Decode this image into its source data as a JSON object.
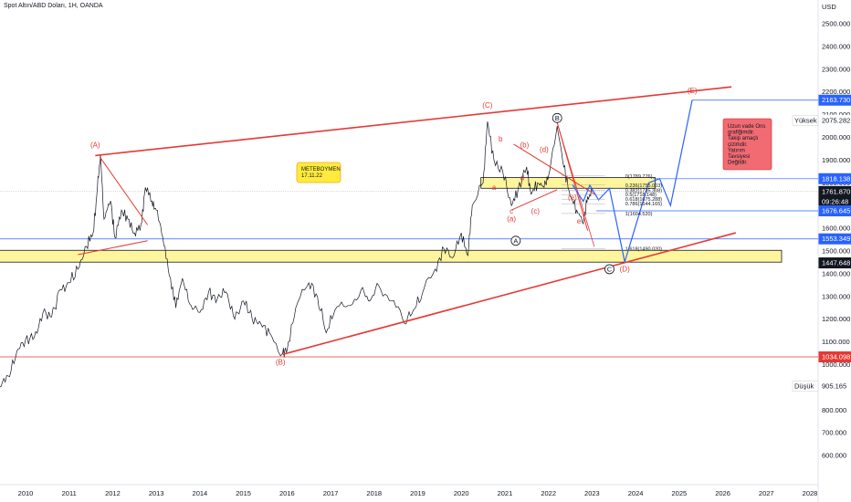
{
  "header": {
    "title": "Spot Altın/ABD Doları, 1H, OANDA"
  },
  "chart_data": {
    "type": "line",
    "currency": "USD",
    "y_ticks": [
      600,
      700,
      800,
      900,
      1000,
      1100,
      1200,
      1300,
      1400,
      1500,
      1600,
      1700,
      1800,
      1900,
      2000,
      2100,
      2200,
      2300,
      2400,
      2500
    ],
    "y_tick_labels": [
      "600.000",
      "700.000",
      "800.000",
      "900.000",
      "1000.000",
      "1100.000",
      "1200.000",
      "1300.000",
      "1400.000",
      "1500.000",
      "1600.000",
      "1700.000",
      "1800.000",
      "1900.000",
      "2000.000",
      "2100.000",
      "2200.000",
      "2300.000",
      "2400.000",
      "2500.000"
    ],
    "x_ticks": [
      "2010",
      "2011",
      "2012",
      "2013",
      "2014",
      "2015",
      "2016",
      "2017",
      "2018",
      "2019",
      "2020",
      "2021",
      "2022",
      "2023",
      "2024",
      "2025",
      "2026",
      "2027",
      "2028"
    ],
    "ylim": [
      560,
      2560
    ],
    "xlim": [
      2009.4,
      2028.6
    ],
    "price_tags": [
      {
        "label": "2163.730",
        "value": 2163.73,
        "color": "#2962ff"
      },
      {
        "label": "2075.282",
        "value": 2075.282,
        "color": "#ffffff",
        "text_color": "#131722",
        "prefix": "Yüksek"
      },
      {
        "label": "1818.138",
        "value": 1818.138,
        "color": "#2962ff"
      },
      {
        "label": "1761.870",
        "value": 1761.87,
        "color": "#131722",
        "sub": "09:26:48"
      },
      {
        "label": "1676.645",
        "value": 1676.645,
        "color": "#2962ff"
      },
      {
        "label": "1553.349",
        "value": 1553.349,
        "color": "#2962ff"
      },
      {
        "label": "1447.648",
        "value": 1447.648,
        "color": "#131722"
      },
      {
        "label": "1034.098",
        "value": 1034.098,
        "color": "#e53935"
      },
      {
        "label": "905.165",
        "value": 905.165,
        "color": "#ffffff",
        "text_color": "#131722",
        "prefix": "Düşük"
      }
    ],
    "price_series": [
      [
        2009.4,
        905
      ],
      [
        2009.6,
        950
      ],
      [
        2009.8,
        1060
      ],
      [
        2010.0,
        1110
      ],
      [
        2010.2,
        1120
      ],
      [
        2010.4,
        1230
      ],
      [
        2010.6,
        1210
      ],
      [
        2010.8,
        1330
      ],
      [
        2011.0,
        1360
      ],
      [
        2011.2,
        1420
      ],
      [
        2011.4,
        1520
      ],
      [
        2011.55,
        1580
      ],
      [
        2011.65,
        1780
      ],
      [
        2011.72,
        1920
      ],
      [
        2011.8,
        1640
      ],
      [
        2011.95,
        1720
      ],
      [
        2012.05,
        1560
      ],
      [
        2012.2,
        1680
      ],
      [
        2012.35,
        1640
      ],
      [
        2012.5,
        1580
      ],
      [
        2012.65,
        1620
      ],
      [
        2012.75,
        1780
      ],
      [
        2012.9,
        1720
      ],
      [
        2013.0,
        1680
      ],
      [
        2013.15,
        1560
      ],
      [
        2013.3,
        1390
      ],
      [
        2013.45,
        1250
      ],
      [
        2013.6,
        1380
      ],
      [
        2013.8,
        1260
      ],
      [
        2014.0,
        1230
      ],
      [
        2014.2,
        1320
      ],
      [
        2014.4,
        1290
      ],
      [
        2014.6,
        1320
      ],
      [
        2014.8,
        1200
      ],
      [
        2015.0,
        1280
      ],
      [
        2015.2,
        1200
      ],
      [
        2015.4,
        1180
      ],
      [
        2015.6,
        1140
      ],
      [
        2015.9,
        1050
      ],
      [
        2016.0,
        1060
      ],
      [
        2016.2,
        1250
      ],
      [
        2016.5,
        1360
      ],
      [
        2016.7,
        1300
      ],
      [
        2016.9,
        1140
      ],
      [
        2017.1,
        1240
      ],
      [
        2017.4,
        1260
      ],
      [
        2017.7,
        1330
      ],
      [
        2017.9,
        1280
      ],
      [
        2018.1,
        1350
      ],
      [
        2018.4,
        1280
      ],
      [
        2018.7,
        1180
      ],
      [
        2018.9,
        1240
      ],
      [
        2019.1,
        1310
      ],
      [
        2019.4,
        1420
      ],
      [
        2019.6,
        1510
      ],
      [
        2019.8,
        1470
      ],
      [
        2020.0,
        1580
      ],
      [
        2020.15,
        1480
      ],
      [
        2020.25,
        1700
      ],
      [
        2020.5,
        1800
      ],
      [
        2020.6,
        2070
      ],
      [
        2020.75,
        1900
      ],
      [
        2020.95,
        1850
      ],
      [
        2021.15,
        1700
      ],
      [
        2021.3,
        1770
      ],
      [
        2021.5,
        1870
      ],
      [
        2021.6,
        1750
      ],
      [
        2021.75,
        1800
      ],
      [
        2021.9,
        1780
      ],
      [
        2022.0,
        1830
      ],
      [
        2022.2,
        2050
      ],
      [
        2022.35,
        1870
      ],
      [
        2022.5,
        1740
      ],
      [
        2022.65,
        1680
      ],
      [
        2022.8,
        1620
      ],
      [
        2022.9,
        1740
      ],
      [
        2023.0,
        1762
      ]
    ]
  },
  "annotations": {
    "waves": [
      {
        "label": "(A)",
        "x": 2011.6,
        "y": 1955
      },
      {
        "label": "(B)",
        "x": 2015.85,
        "y": 1000
      },
      {
        "label": "(C)",
        "x": 2020.6,
        "y": 2130
      },
      {
        "label": "(D)",
        "x": 2023.75,
        "y": 1410
      },
      {
        "label": "(E)",
        "x": 2025.3,
        "y": 2195
      },
      {
        "label": "(a)",
        "x": 2021.15,
        "y": 1630
      },
      {
        "label": "(b)",
        "x": 2021.45,
        "y": 1955
      },
      {
        "label": "(c)",
        "x": 2021.7,
        "y": 1665
      },
      {
        "label": "(d)",
        "x": 2021.9,
        "y": 1935
      },
      {
        "label": "(e)",
        "x": 2022.55,
        "y": 1725
      },
      {
        "label": "b",
        "x": 2020.9,
        "y": 1982
      },
      {
        "label": "a",
        "x": 2020.75,
        "y": 1770
      },
      {
        "label": "c",
        "x": 2021.15,
        "y": 1665
      },
      {
        "label": "d",
        "x": 2021.4,
        "y": 1812
      },
      {
        "label": "e",
        "x": 2022.7,
        "y": 1620
      }
    ],
    "circled": [
      {
        "label": "B",
        "x": 2022.2,
        "y": 2085
      },
      {
        "label": "A",
        "x": 2021.25,
        "y": 1545
      },
      {
        "label": "C",
        "x": 2023.4,
        "y": 1420
      }
    ],
    "fib_levels": [
      {
        "label": "0(1789.776)",
        "x": 2022.4,
        "y": 1830
      },
      {
        "label": "0.236(1755.003)",
        "x": 2022.4,
        "y": 1790
      },
      {
        "label": "0.382(1735.308)",
        "x": 2022.4,
        "y": 1768
      },
      {
        "label": "0.5(1718.148)",
        "x": 2022.4,
        "y": 1748
      },
      {
        "label": "0.618(1675.288)",
        "x": 2022.4,
        "y": 1728
      },
      {
        "label": "0.786(1644.165)",
        "x": 2022.4,
        "y": 1708
      },
      {
        "label": "1(1604.520)",
        "x": 2022.4,
        "y": 1665
      },
      {
        "label": "1.618(1490.020)",
        "x": 2022.4,
        "y": 1510
      }
    ],
    "author_box": {
      "lines": [
        "METEBOYMEN",
        "17.11.22"
      ]
    },
    "note_box": {
      "lines": [
        "Uzun vade Ons",
        "grafiğimdir.",
        "Takip amaçlı",
        "çizimdir.",
        "Yatırım",
        "Tavsiyesi",
        "Değildir."
      ]
    }
  },
  "colors": {
    "trend": "#e53935",
    "projection": "#2962ff",
    "zone_fill": "#fff59d",
    "zone_border": "#131722",
    "price": "#131722",
    "note_fill": "#f36b72"
  }
}
